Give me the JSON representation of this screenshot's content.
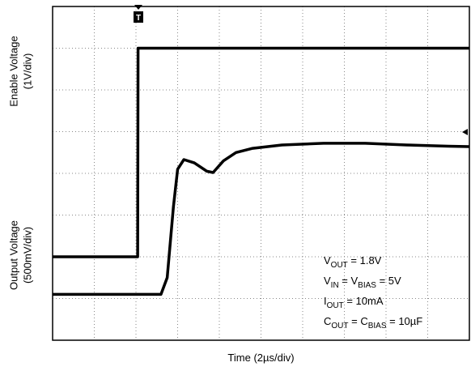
{
  "chart_data": {
    "type": "line",
    "ylabel_top": [
      "Enable Voltage",
      "(1V/div)"
    ],
    "ylabel_bottom": [
      "Output Voltage",
      "(500mV/div)"
    ],
    "xlabel": "Time (2µs/div)",
    "annotations": [
      [
        "V",
        "OUT",
        " = 1.8V"
      ],
      [
        "V",
        "IN",
        " = V",
        "BIAS",
        " = 5V"
      ],
      [
        "I",
        "OUT",
        " = 10mA"
      ],
      [
        "C",
        "OUT",
        " = C",
        "BIAS",
        " = 10µF"
      ]
    ],
    "xlim": [
      0,
      10
    ],
    "ylim": [
      0,
      8
    ],
    "xticks": [
      0,
      1,
      2,
      3,
      4,
      5,
      6,
      7,
      8,
      9,
      10
    ],
    "yticks": [
      0,
      1,
      2,
      3,
      4,
      5,
      6,
      7,
      8
    ],
    "grid": true,
    "series": [
      {
        "color": "#000000",
        "x": [
          0,
          2.04,
          2.05,
          2.2,
          10
        ],
        "values": [
          2.0,
          2.0,
          7.0,
          7.0,
          7.0
        ]
      },
      {
        "color": "#000000",
        "x": [
          0,
          2.6,
          2.75,
          2.9,
          3.0,
          3.15,
          3.4,
          3.7,
          3.85,
          4.1,
          4.4,
          4.8,
          5.5,
          6.5,
          7.5,
          8.5,
          9.5,
          10
        ],
        "values": [
          1.1,
          1.1,
          1.5,
          3.2,
          4.1,
          4.33,
          4.25,
          4.05,
          4.02,
          4.3,
          4.5,
          4.6,
          4.68,
          4.72,
          4.72,
          4.68,
          4.65,
          4.64
        ]
      }
    ]
  }
}
